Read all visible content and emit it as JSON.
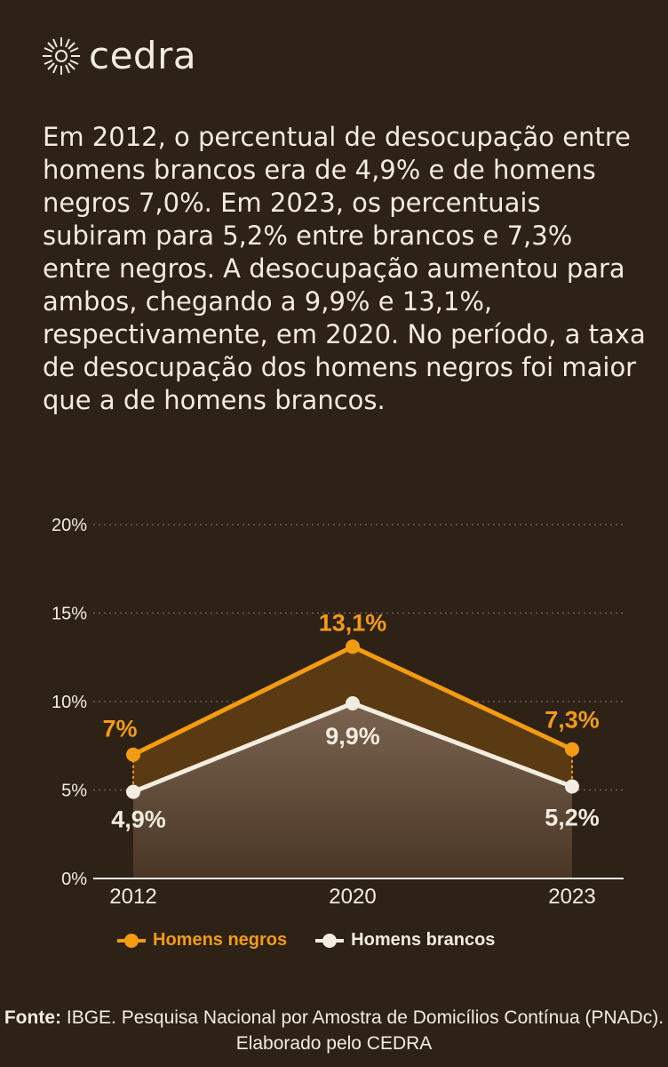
{
  "brand": {
    "name": "cedra"
  },
  "description": "Em 2012, o percentual de desocupação entre homens brancos era de 4,9% e de homens negros 7,0%. Em 2023, os percentuais subiram para 5,2% entre brancos e 7,3% entre negros. A desocupação aumentou para ambos, chegando a 9,9% e 13,1%, respectivamente, em 2020. No período, a taxa de desocupação dos homens negros foi maior que a de homens brancos.",
  "colors": {
    "background": "#2e2116",
    "negros": "#f39c12",
    "brancos": "#f3ece0",
    "grid": "#7a6a5a"
  },
  "chart_data": {
    "type": "line",
    "x": [
      "2012",
      "2020",
      "2023"
    ],
    "ylim": [
      0,
      20
    ],
    "yticks": [
      "0%",
      "5%",
      "10%",
      "15%",
      "20%"
    ],
    "grid": true,
    "legend_position": "bottom",
    "series": [
      {
        "name": "Homens negros",
        "values": [
          7.0,
          13.1,
          7.3
        ],
        "labels": [
          "7%",
          "13,1%",
          "7,3%"
        ],
        "color": "#f39c12"
      },
      {
        "name": "Homens brancos",
        "values": [
          4.9,
          9.9,
          5.2
        ],
        "labels": [
          "4,9%",
          "9,9%",
          "5,2%"
        ],
        "color": "#f3ece0"
      }
    ]
  },
  "source": {
    "label": "Fonte:",
    "text": "IBGE. Pesquisa Nacional por Amostra de Domicílios Contínua (PNADc). Elaborado pelo CEDRA"
  }
}
